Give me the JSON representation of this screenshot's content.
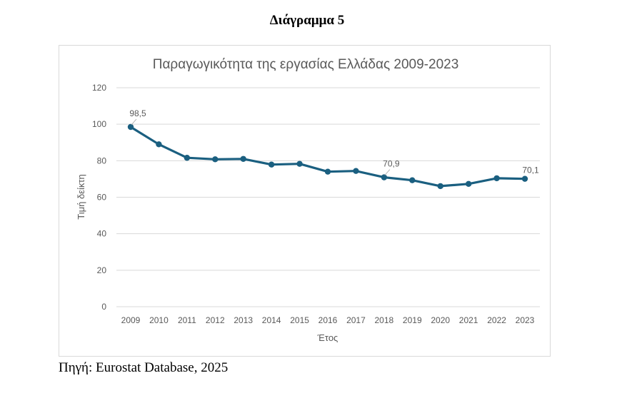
{
  "figure_caption": "Διάγραμμα 5",
  "source_note": "Πηγή: Eurostat Database, 2025",
  "colors": {
    "line": "#1a5f80",
    "grid": "#d9d9d9",
    "text": "#595959"
  },
  "chart_data": {
    "type": "line",
    "title": "Παραγωγικότητα της εργασίας Ελλάδας 2009-2023",
    "xlabel": "Έτος",
    "ylabel": "Τιμή δείκτη",
    "ylim": [
      0,
      120
    ],
    "yticks": [
      "0",
      "20",
      "40",
      "60",
      "80",
      "100",
      "120"
    ],
    "grid": true,
    "legend": "none",
    "categories": [
      "2009",
      "2010",
      "2011",
      "2012",
      "2013",
      "2014",
      "2015",
      "2016",
      "2017",
      "2018",
      "2019",
      "2020",
      "2021",
      "2022",
      "2023"
    ],
    "series": [
      {
        "name": "Παραγωγικότητα της εργασίας",
        "values": [
          98.5,
          89.0,
          81.6,
          80.8,
          81.0,
          77.9,
          78.3,
          74.0,
          74.4,
          70.9,
          69.3,
          66.1,
          67.3,
          70.4,
          70.1
        ]
      }
    ],
    "data_labels": [
      {
        "index": 0,
        "text": "98,5"
      },
      {
        "index": 9,
        "text": "70,9"
      },
      {
        "index": 14,
        "text": "70,1"
      }
    ]
  }
}
